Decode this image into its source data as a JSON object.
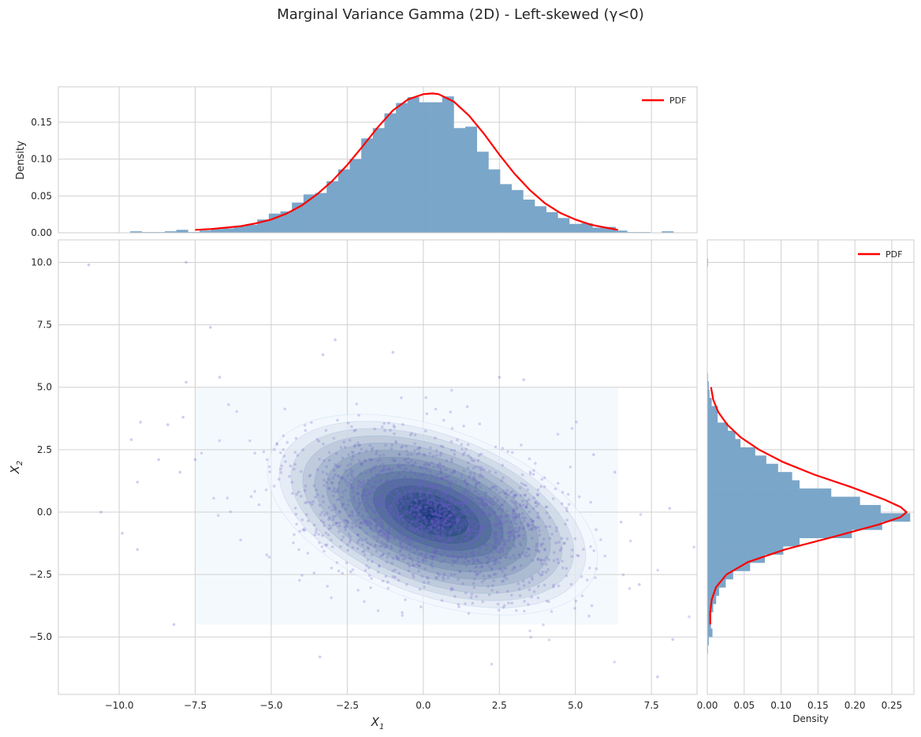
{
  "figure": {
    "title": "Marginal Variance Gamma (2D) - Left-skewed (γ<0)",
    "colors": {
      "histogram_fill": "#7aa6c9",
      "pdf_line": "#ff0000",
      "scatter_point": "#6a5acd",
      "kde_low": "#f2f8fd",
      "kde_high": "#08306b",
      "grid": "#d0d0d0",
      "spine": "#cccccc"
    }
  },
  "chart_data": [
    {
      "id": "joint",
      "type": "scatter",
      "title": "",
      "xlabel": "X_1",
      "ylabel": "X_2",
      "xlim": [
        -12.0,
        9.0
      ],
      "ylim": [
        -7.3,
        10.9
      ],
      "xticks": [
        -10.0,
        -7.5,
        -5.0,
        -2.5,
        0.0,
        2.5,
        5.0,
        7.5
      ],
      "xtick_labels": [
        "−10.0",
        "−7.5",
        "−5.0",
        "−2.5",
        "0.0",
        "2.5",
        "5.0",
        "7.5"
      ],
      "yticks": [
        -5.0,
        -2.5,
        0.0,
        2.5,
        5.0,
        7.5,
        10.0
      ],
      "ytick_labels": [
        "−5.0",
        "−2.5",
        "0.0",
        "2.5",
        "5.0",
        "7.5",
        "10.0"
      ],
      "grid": true,
      "kde_overlay": {
        "type": "contourf",
        "extent_x": [
          -7.5,
          6.4
        ],
        "extent_y": [
          -4.5,
          5.0
        ],
        "center": [
          0.3,
          -0.1
        ],
        "sd_x": 2.3,
        "sd_y": 1.4,
        "rotation_deg": 20,
        "levels": 14,
        "colormap": "Blues"
      },
      "scatter_cloud": {
        "n_points_approx": 5000,
        "center": [
          0.3,
          -0.1
        ],
        "correlation": "negative",
        "marker_alpha": 0.25
      },
      "notable_outliers": [
        [
          -11.0,
          9.9
        ],
        [
          -7.8,
          10.0
        ],
        [
          -7.0,
          7.4
        ],
        [
          -3.3,
          6.3
        ],
        [
          -2.9,
          6.9
        ],
        [
          -1.0,
          6.4
        ],
        [
          2.5,
          5.4
        ],
        [
          3.3,
          5.3
        ],
        [
          -6.7,
          5.4
        ],
        [
          -7.8,
          5.2
        ],
        [
          -10.6,
          0.0
        ],
        [
          -9.9,
          -0.85
        ],
        [
          -9.4,
          1.2
        ],
        [
          -9.3,
          3.6
        ],
        [
          -9.6,
          2.9
        ],
        [
          -9.4,
          -1.5
        ],
        [
          -8.2,
          -4.5
        ],
        [
          -8.7,
          2.1
        ],
        [
          -8.4,
          3.5
        ],
        [
          -8.0,
          1.6
        ],
        [
          -7.9,
          3.8
        ],
        [
          -7.5,
          2.1
        ],
        [
          -3.4,
          -5.8
        ],
        [
          8.1,
          0.15
        ],
        [
          7.1,
          -2.9
        ],
        [
          8.2,
          -5.1
        ],
        [
          7.7,
          -6.6
        ],
        [
          6.5,
          -0.4
        ],
        [
          6.3,
          1.6
        ],
        [
          5.6,
          2.3
        ]
      ]
    },
    {
      "id": "top_marginal",
      "type": "bar",
      "title": "",
      "xlabel": "",
      "ylabel": "Density",
      "xlim": [
        -12.0,
        9.0
      ],
      "ylim": [
        0.0,
        0.198
      ],
      "yticks": [
        0.0,
        0.05,
        0.1,
        0.15
      ],
      "ytick_labels": [
        "0.00",
        "0.05",
        "0.10",
        "0.15"
      ],
      "grid": true,
      "legend": {
        "entries": [
          "PDF"
        ],
        "position": "upper right"
      },
      "bin_width": 0.38,
      "bin_centers": [
        -9.45,
        -9.07,
        -8.69,
        -8.31,
        -7.93,
        -7.55,
        -7.17,
        -6.79,
        -6.41,
        -6.03,
        -5.65,
        -5.27,
        -4.89,
        -4.51,
        -4.13,
        -3.75,
        -3.37,
        -2.99,
        -2.61,
        -2.23,
        -1.85,
        -1.47,
        -1.09,
        -0.71,
        -0.33,
        0.05,
        0.43,
        0.81,
        1.19,
        1.57,
        1.95,
        2.33,
        2.71,
        3.09,
        3.47,
        3.85,
        4.23,
        4.61,
        4.99,
        5.37,
        5.75,
        6.13,
        6.51,
        6.89,
        7.27,
        7.65,
        8.03,
        8.41
      ],
      "values": [
        0.002,
        0.001,
        0.001,
        0.002,
        0.004,
        0.001,
        0.003,
        0.005,
        0.006,
        0.009,
        0.011,
        0.018,
        0.026,
        0.029,
        0.041,
        0.052,
        0.054,
        0.07,
        0.086,
        0.1,
        0.128,
        0.142,
        0.162,
        0.176,
        0.184,
        0.177,
        0.177,
        0.185,
        0.142,
        0.144,
        0.11,
        0.086,
        0.066,
        0.058,
        0.045,
        0.036,
        0.028,
        0.02,
        0.012,
        0.013,
        0.007,
        0.008,
        0.003,
        0.001,
        0.001,
        0.0,
        0.002,
        0.0
      ],
      "pdf": {
        "label": "PDF",
        "x": [
          -7.5,
          -7.0,
          -6.5,
          -6.0,
          -5.5,
          -5.0,
          -4.5,
          -4.0,
          -3.5,
          -3.0,
          -2.5,
          -2.0,
          -1.5,
          -1.0,
          -0.5,
          0.0,
          0.3,
          0.5,
          1.0,
          1.5,
          2.0,
          2.5,
          3.0,
          3.5,
          4.0,
          4.5,
          5.0,
          5.5,
          6.0,
          6.4
        ],
        "y": [
          0.004,
          0.005,
          0.007,
          0.009,
          0.013,
          0.018,
          0.026,
          0.037,
          0.052,
          0.07,
          0.092,
          0.117,
          0.143,
          0.166,
          0.181,
          0.188,
          0.189,
          0.188,
          0.178,
          0.159,
          0.134,
          0.106,
          0.08,
          0.058,
          0.04,
          0.027,
          0.018,
          0.011,
          0.007,
          0.004
        ]
      }
    },
    {
      "id": "right_marginal",
      "type": "bar",
      "orientation": "horizontal",
      "title": "",
      "xlabel": "Density",
      "ylabel": "",
      "xlim": [
        0.0,
        0.28
      ],
      "ylim": [
        -7.3,
        10.9
      ],
      "xticks": [
        0.0,
        0.05,
        0.1,
        0.15,
        0.2,
        0.25
      ],
      "xtick_labels": [
        "0.00",
        "0.05",
        "0.10",
        "0.15",
        "0.20",
        "0.25"
      ],
      "grid": true,
      "legend": {
        "entries": [
          "PDF"
        ],
        "position": "upper right"
      },
      "bin_width": 0.33,
      "bin_centers": [
        10.0,
        5.4,
        5.07,
        4.74,
        4.41,
        4.08,
        3.75,
        3.42,
        3.09,
        2.76,
        2.43,
        2.1,
        1.77,
        1.44,
        1.11,
        0.78,
        0.45,
        0.12,
        -0.21,
        -0.54,
        -0.87,
        -1.2,
        -1.53,
        -1.86,
        -2.19,
        -2.52,
        -2.85,
        -3.18,
        -3.51,
        -3.84,
        -4.17,
        -4.5,
        -4.83,
        -5.16,
        -5.49
      ],
      "values": [
        0.001,
        0.001,
        0.002,
        0.003,
        0.006,
        0.014,
        0.014,
        0.028,
        0.038,
        0.045,
        0.065,
        0.08,
        0.096,
        0.115,
        0.125,
        0.168,
        0.207,
        0.235,
        0.275,
        0.237,
        0.196,
        0.125,
        0.103,
        0.078,
        0.058,
        0.035,
        0.025,
        0.016,
        0.012,
        0.008,
        0.005,
        0.005,
        0.007,
        0.002,
        0.001
      ],
      "pdf": {
        "label": "PDF",
        "y": [
          5.0,
          4.5,
          4.0,
          3.5,
          3.0,
          2.5,
          2.0,
          1.5,
          1.0,
          0.5,
          0.2,
          0.0,
          -0.2,
          -0.5,
          -1.0,
          -1.5,
          -2.0,
          -2.5,
          -3.0,
          -3.5,
          -4.0,
          -4.5
        ],
        "x": [
          0.005,
          0.008,
          0.015,
          0.027,
          0.045,
          0.07,
          0.103,
          0.145,
          0.195,
          0.24,
          0.262,
          0.27,
          0.262,
          0.232,
          0.17,
          0.105,
          0.055,
          0.026,
          0.012,
          0.006,
          0.004,
          0.004
        ]
      }
    }
  ]
}
